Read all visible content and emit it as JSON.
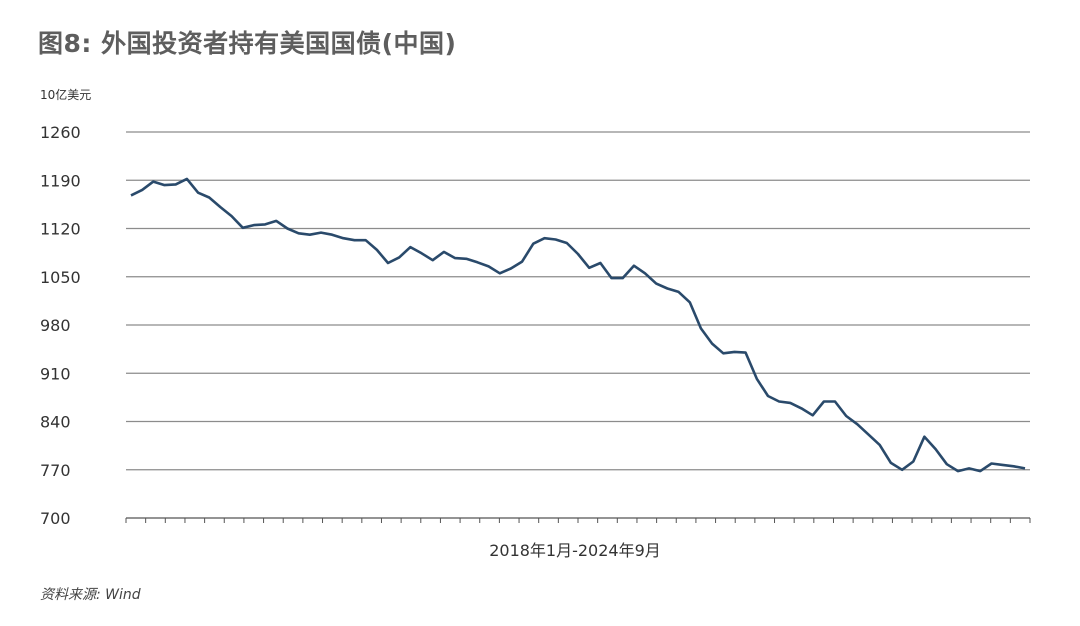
{
  "title": "图8: 外国投资者持有美国国债(中国)",
  "source": "资料来源: Wind",
  "chart_data": {
    "type": "line",
    "title": "图8: 外国投资者持有美国国债(中国)",
    "ylabel": "10亿美元",
    "xlabel": "2018年1月-2024年9月",
    "ylim": [
      700,
      1260
    ],
    "yticks": [
      700,
      770,
      840,
      910,
      980,
      1050,
      1120,
      1190,
      1260
    ],
    "grid": true,
    "color": "#2a4a6b",
    "series": [
      {
        "values": [
          1168,
          1176,
          1188,
          1183,
          1184,
          1192,
          1172,
          1165,
          1151,
          1138,
          1121,
          1125,
          1126,
          1131,
          1120,
          1113,
          1111,
          1114,
          1111,
          1106,
          1103,
          1103,
          1089,
          1070,
          1078,
          1093,
          1084,
          1074,
          1086,
          1077,
          1076,
          1071,
          1065,
          1055,
          1062,
          1072,
          1098,
          1106,
          1104,
          1099,
          1083,
          1063,
          1070,
          1048,
          1048,
          1066,
          1055,
          1040,
          1033,
          1028,
          1013,
          975,
          953,
          939,
          941,
          940,
          902,
          877,
          869,
          867,
          859,
          849,
          869,
          869,
          848,
          836,
          821,
          806,
          780,
          770,
          782,
          818,
          800,
          778,
          768,
          772,
          768,
          779,
          777,
          775,
          772
        ]
      }
    ]
  }
}
